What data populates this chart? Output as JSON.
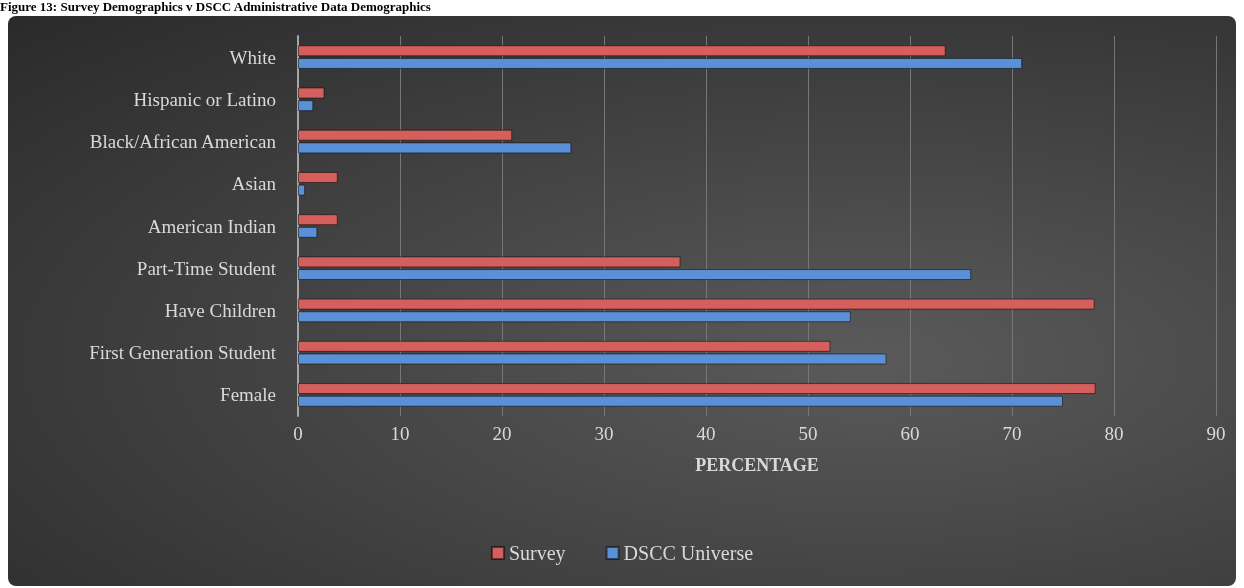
{
  "chart_data": {
    "type": "bar",
    "orientation": "horizontal",
    "title": "Figure 13: Survey Demographics v DSCC Administrative Data Demographics",
    "xlabel": "PERCENTAGE",
    "categories": [
      "White",
      "Hispanic or Latino",
      "Black/African American",
      "Asian",
      "American Indian",
      "Part-Time Student",
      "Have Children",
      "First Generation Student",
      "Female"
    ],
    "series": [
      {
        "name": "Survey",
        "color": "#d45f5c",
        "values": [
          63.5,
          2.6,
          21.0,
          3.9,
          3.9,
          37.5,
          78.1,
          52.2,
          78.2
        ]
      },
      {
        "name": "DSCC Universe",
        "color": "#5b8fd6",
        "values": [
          71.0,
          1.5,
          26.8,
          0.7,
          1.9,
          66.0,
          54.2,
          57.7,
          75.0
        ]
      }
    ],
    "xlim": [
      0,
      90
    ],
    "xticks": [
      0,
      10,
      20,
      30,
      40,
      50,
      60,
      70,
      80,
      90
    ],
    "grid": "x",
    "legend": "bottom"
  }
}
